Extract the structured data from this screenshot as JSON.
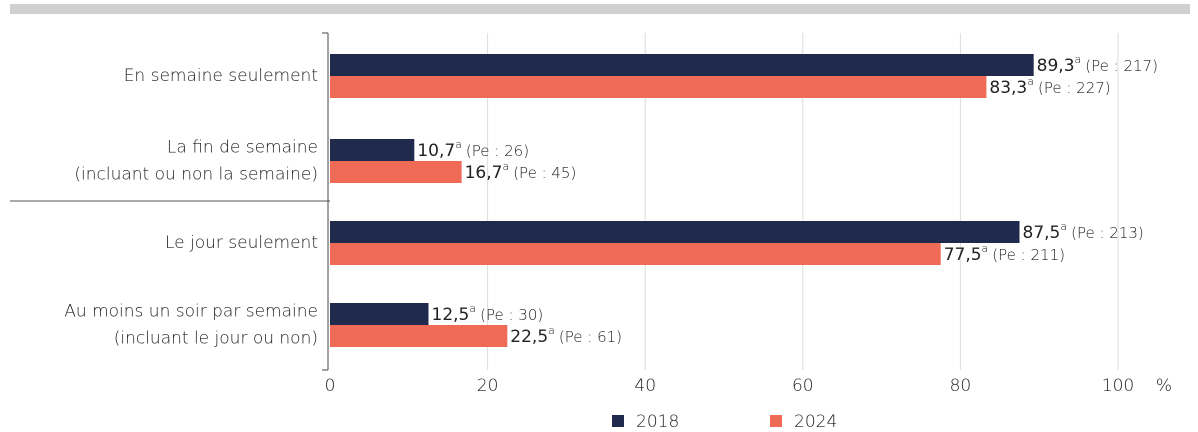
{
  "chart_data": {
    "type": "hbar",
    "categories": [
      [
        "En semaine seulement"
      ],
      [
        "La fin de semaine",
        "(incluant ou non la semaine)"
      ],
      [
        "Le jour seulement"
      ],
      [
        "Au moins un soir par semaine",
        "(incluant le jour ou non)"
      ]
    ],
    "series": [
      {
        "name": "2018",
        "color": "#1f2a4d",
        "values": [
          89.3,
          10.7,
          87.5,
          12.5
        ],
        "value_labels": [
          "89,3",
          "10,7",
          "87,5",
          "12,5"
        ],
        "value_superscripts": [
          "a",
          "a",
          "a",
          "a"
        ],
        "value_notes": [
          "(Pe : 217)",
          "(Pe : 26)",
          "(Pe : 213)",
          "(Pe : 30)"
        ]
      },
      {
        "name": "2024",
        "color": "#f06b55",
        "values": [
          83.3,
          16.7,
          77.5,
          22.5
        ],
        "value_labels": [
          "83,3",
          "16,7",
          "77,5",
          "22,5"
        ],
        "value_superscripts": [
          "a",
          "a",
          "a",
          "a"
        ],
        "value_notes": [
          "(Pe : 227)",
          "(Pe : 45)",
          "(Pe : 211)",
          "(Pe : 61)"
        ]
      }
    ],
    "xlim": [
      0,
      100
    ],
    "xticks": [
      0,
      20,
      40,
      60,
      80,
      100
    ],
    "x_unit": "%",
    "grid": true,
    "legend": "bottom"
  }
}
